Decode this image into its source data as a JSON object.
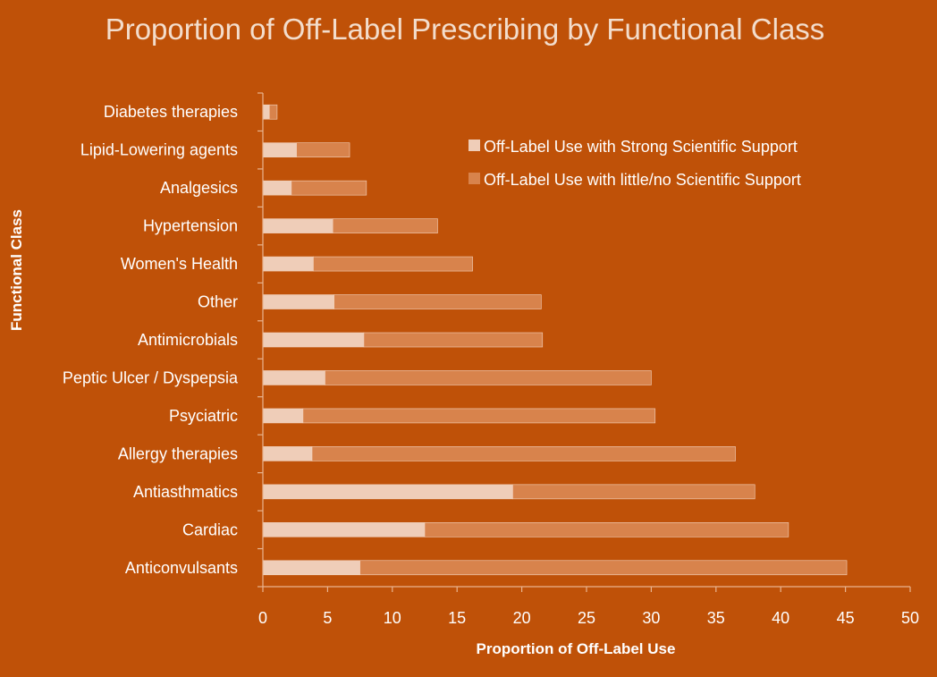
{
  "chart_data": {
    "type": "bar",
    "orientation": "horizontal",
    "stacked": true,
    "title": "Proportion of Off-Label Prescribing by Functional Class",
    "xlabel": "Proportion of Off-Label Use",
    "ylabel": "Functional Class",
    "xlim": [
      0,
      50
    ],
    "xticks": [
      "0",
      "5",
      "10",
      "15",
      "20",
      "25",
      "30",
      "35",
      "40",
      "45",
      "50"
    ],
    "categories": [
      "Diabetes therapies",
      "Lipid-Lowering agents",
      "Analgesics",
      "Hypertension",
      "Women's Health",
      "Other",
      "Antimicrobials",
      "Peptic Ulcer / Dyspepsia",
      "Psyciatric",
      "Allergy therapies",
      "Antiasthmatics",
      "Cardiac",
      "Anticonvulsants"
    ],
    "series": [
      {
        "name": "Off-Label Use with Strong Scientific Support",
        "color": "#efcdb8",
        "values": [
          0.5,
          2.6,
          2.2,
          5.4,
          3.9,
          5.5,
          7.8,
          4.8,
          3.1,
          3.8,
          19.3,
          12.5,
          7.5
        ]
      },
      {
        "name": "Off-Label Use with little/no Scientific Support",
        "color": "#d8834c",
        "values": [
          0.6,
          4.1,
          5.8,
          8.1,
          12.3,
          16.0,
          13.8,
          25.2,
          27.2,
          32.7,
          18.7,
          28.1,
          37.6
        ]
      }
    ],
    "grid": false,
    "legend_position": "top-right"
  }
}
